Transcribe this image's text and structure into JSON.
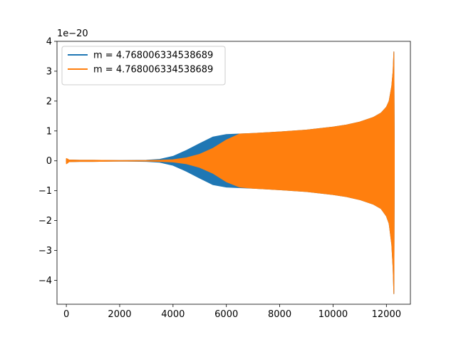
{
  "chart_data": {
    "type": "area",
    "title": "",
    "xlabel": "",
    "ylabel": "",
    "y_offset_label": "1e−20",
    "xlim": [
      -350,
      12900
    ],
    "ylim": [
      -4.8,
      4.0
    ],
    "x_ticks": [
      0,
      2000,
      4000,
      6000,
      8000,
      10000,
      12000
    ],
    "x_tick_labels": [
      "0",
      "2000",
      "4000",
      "6000",
      "8000",
      "10000",
      "12000"
    ],
    "y_ticks": [
      4,
      3,
      2,
      1,
      0,
      -1,
      -2,
      -3,
      -4
    ],
    "y_tick_labels": [
      "4",
      "3",
      "2",
      "1",
      "0",
      "−1",
      "−2",
      "−3",
      "−4"
    ],
    "grid": false,
    "legend_position": "upper-left",
    "series": [
      {
        "name": "m = 4.768006334538689",
        "color": "#1f77b4",
        "envelope_x": [
          0,
          100,
          500,
          1000,
          2000,
          3000,
          3500,
          4000,
          4500,
          5000,
          5500,
          6000,
          6500,
          7000,
          8000,
          9000,
          10000,
          10500,
          11000,
          11500,
          11800,
          12000,
          12100,
          12200,
          12250,
          12280,
          12300
        ],
        "envelope_upper": [
          0.05,
          0.03,
          0.02,
          0.02,
          0.01,
          0.02,
          0.05,
          0.15,
          0.35,
          0.58,
          0.8,
          0.88,
          0.9,
          0.92,
          0.97,
          1.03,
          1.13,
          1.2,
          1.3,
          1.45,
          1.6,
          1.8,
          2.0,
          2.5,
          3.0,
          3.65,
          0.4
        ],
        "envelope_lower": [
          -0.05,
          -0.03,
          -0.02,
          -0.02,
          -0.01,
          -0.02,
          -0.05,
          -0.15,
          -0.35,
          -0.58,
          -0.8,
          -0.88,
          -0.9,
          -0.92,
          -0.97,
          -1.03,
          -1.13,
          -1.2,
          -1.3,
          -1.45,
          -1.6,
          -1.85,
          -2.1,
          -2.8,
          -3.6,
          -4.45,
          -0.4
        ]
      },
      {
        "name": "m = 4.768006334538689",
        "color": "#ff7f0e",
        "envelope_x": [
          0,
          50,
          100,
          500,
          1000,
          2000,
          3000,
          3500,
          4000,
          4500,
          5000,
          5500,
          6000,
          6500,
          7000,
          8000,
          9000,
          10000,
          10500,
          11000,
          11500,
          11800,
          12000,
          12100,
          12200,
          12250,
          12280,
          12300
        ],
        "envelope_upper": [
          0.08,
          0.06,
          0.03,
          0.02,
          0.02,
          0.01,
          0.01,
          0.02,
          0.04,
          0.1,
          0.22,
          0.42,
          0.7,
          0.9,
          0.92,
          0.97,
          1.03,
          1.13,
          1.2,
          1.3,
          1.45,
          1.6,
          1.8,
          2.0,
          2.5,
          3.0,
          3.65,
          0.4
        ],
        "envelope_lower": [
          -0.1,
          -0.07,
          -0.03,
          -0.02,
          -0.02,
          -0.01,
          -0.01,
          -0.02,
          -0.04,
          -0.1,
          -0.22,
          -0.42,
          -0.7,
          -0.88,
          -0.92,
          -0.97,
          -1.03,
          -1.13,
          -1.2,
          -1.3,
          -1.45,
          -1.6,
          -1.85,
          -2.1,
          -2.8,
          -3.6,
          -4.45,
          -0.4
        ]
      }
    ]
  }
}
